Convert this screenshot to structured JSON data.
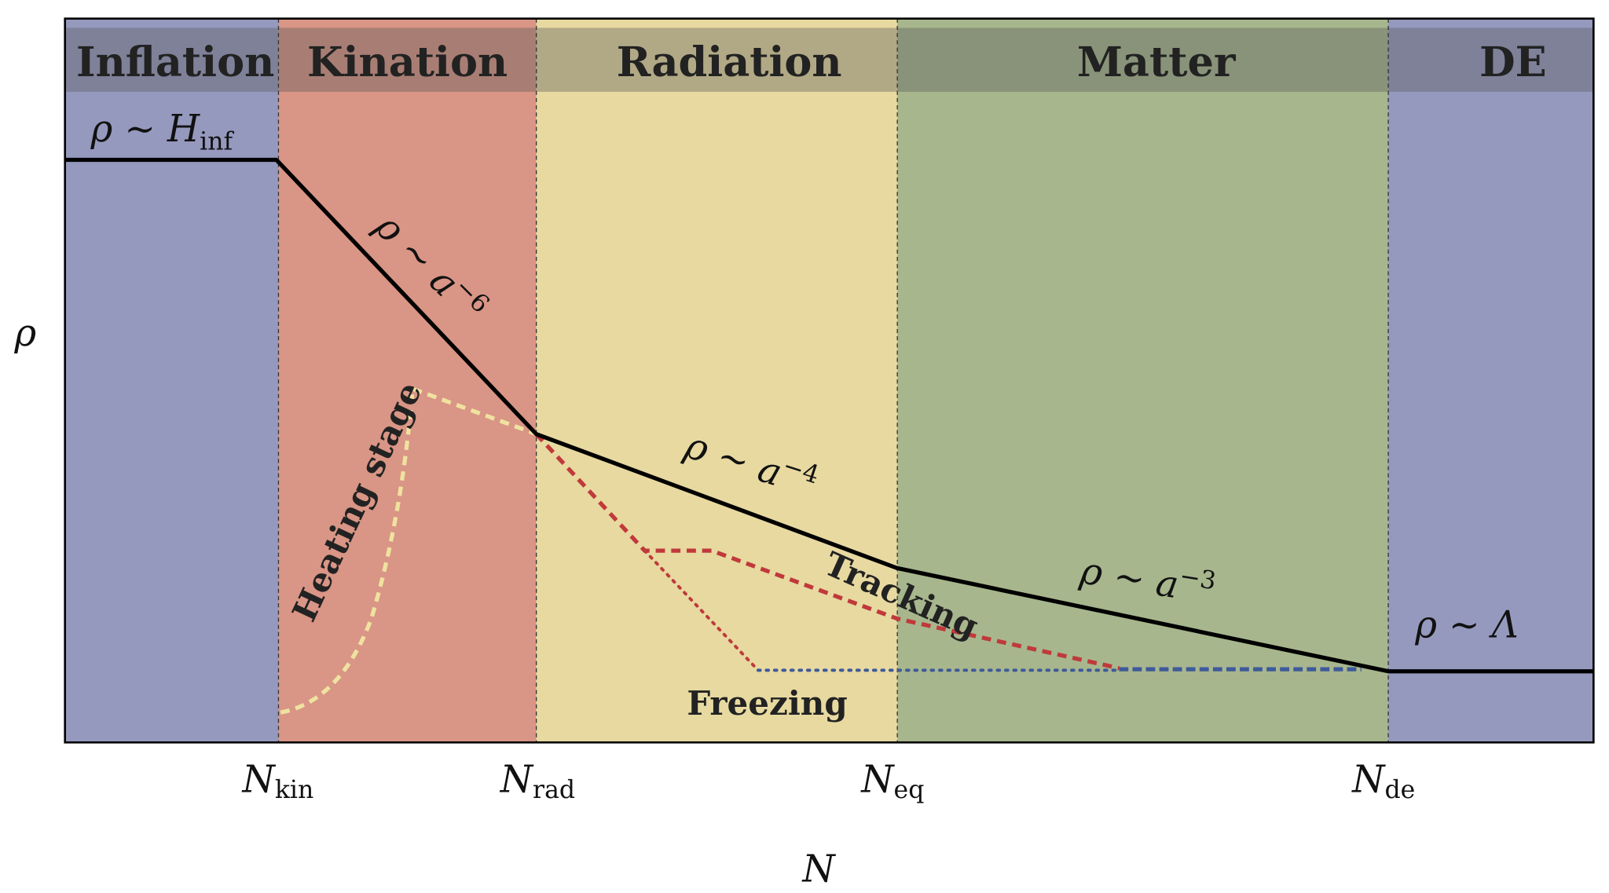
{
  "chart_data": {
    "type": "line",
    "xlabel": "N",
    "ylabel": "ρ",
    "x_ticks": [
      {
        "base": "N",
        "sub": "kin"
      },
      {
        "base": "N",
        "sub": "rad"
      },
      {
        "base": "N",
        "sub": "eq"
      },
      {
        "base": "N",
        "sub": "de"
      }
    ],
    "phases": [
      {
        "name": "Inflation",
        "color": "#9599be"
      },
      {
        "name": "Kination",
        "color": "#d99585"
      },
      {
        "name": "Radiation",
        "color": "#e7d9a0"
      },
      {
        "name": "Matter",
        "color": "#a7b68d"
      },
      {
        "name": "DE",
        "color": "#9599be"
      }
    ],
    "annotations": {
      "inflation": {
        "text": "ρ ∼ H",
        "sub": "inf"
      },
      "kination": {
        "text": "ρ ∼ a",
        "sup": "−6"
      },
      "radiation": {
        "text": "ρ ∼ a",
        "sup": "−4"
      },
      "matter": {
        "text": "ρ ∼ a",
        "sup": "−3"
      },
      "de": {
        "text": "ρ ∼ Λ"
      },
      "heating": "Heating stage",
      "tracking": "Tracking",
      "freezing": "Freezing"
    },
    "series_colors": {
      "background_density": "#000000",
      "heating": "#efe2a0",
      "tracking": "#c0393b",
      "freezing": "#c0393b",
      "frozen": "#3f5a9a"
    }
  }
}
